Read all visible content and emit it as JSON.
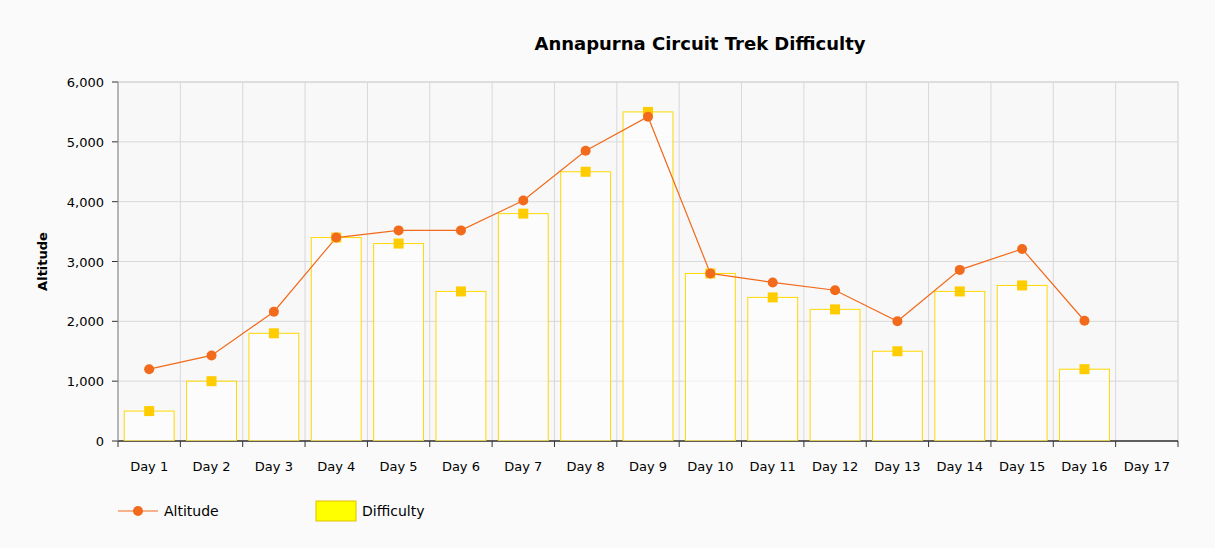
{
  "chart_data": {
    "type": "bar",
    "title": "Annapurna Circuit Trek Difficulty",
    "y_label": "Altitude",
    "categories": [
      "Day 1",
      "Day 2",
      "Day 3",
      "Day 4",
      "Day 5",
      "Day 6",
      "Day 7",
      "Day 8",
      "Day 9",
      "Day 10",
      "Day 11",
      "Day 12",
      "Day 13",
      "Day 14",
      "Day 15",
      "Day 16",
      "Day 17"
    ],
    "series": [
      {
        "name": "Altitude",
        "type": "line",
        "color": "#f26a1b",
        "marker": "circle",
        "values": [
          1200,
          1430,
          2160,
          3400,
          3520,
          3520,
          4020,
          4850,
          5420,
          2800,
          2650,
          2520,
          2000,
          2860,
          3210,
          2010,
          null
        ]
      },
      {
        "name": "Difficulty",
        "type": "bar",
        "color": "#ffd800",
        "marker": "square",
        "values": [
          500,
          1000,
          1800,
          3400,
          3300,
          2500,
          3800,
          4500,
          5500,
          2800,
          2400,
          2200,
          1500,
          2500,
          2600,
          1200,
          null
        ]
      }
    ],
    "ylim": [
      0,
      6000
    ],
    "yticks": [
      0,
      {
        "value": 1000,
        "label": "1,000"
      },
      {
        "value": 2000,
        "label": "2,000"
      },
      {
        "value": 3000,
        "label": "3,000"
      },
      {
        "value": 4000,
        "label": "4,000"
      },
      {
        "value": 5000,
        "label": "5,000"
      },
      {
        "value": 6000,
        "label": "6,000"
      }
    ],
    "grid": true,
    "legend": "bottom"
  }
}
